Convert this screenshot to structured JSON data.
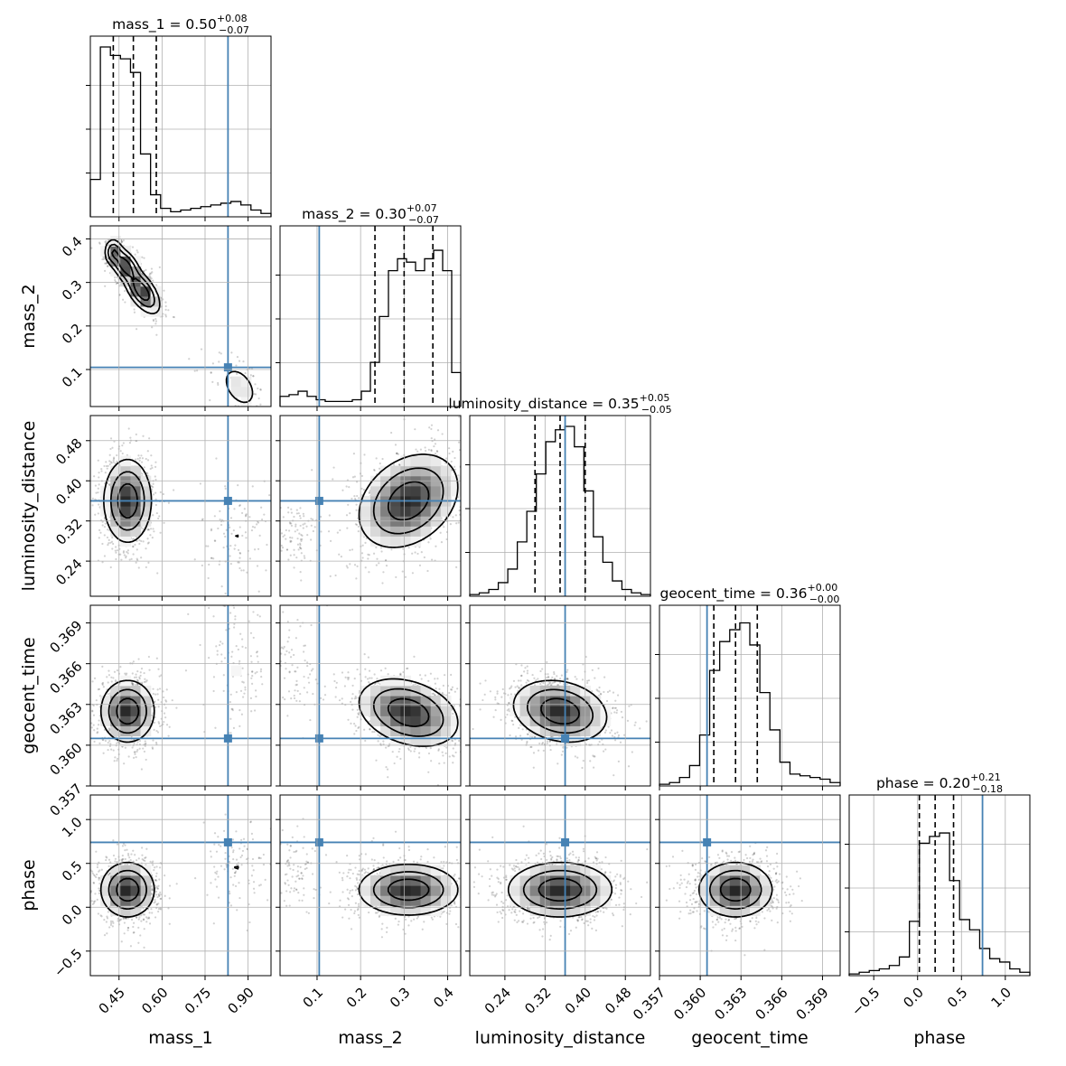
{
  "chart_data": {
    "type": "corner",
    "parameters": [
      {
        "name": "mass_1",
        "axis_label": "mass_1",
        "median": "0.50",
        "plus": "+0.08",
        "minus": "−0.07",
        "range": [
          0.35,
          0.98
        ],
        "ticks": [
          0.45,
          0.6,
          0.75,
          0.9
        ],
        "tick_labels": [
          "0.45",
          "0.60",
          "0.75",
          "0.90"
        ],
        "truth": 0.83,
        "quantiles": [
          0.43,
          0.5,
          0.58
        ]
      },
      {
        "name": "mass_2",
        "axis_label": "mass_2",
        "median": "0.30",
        "plus": "+0.07",
        "minus": "−0.07",
        "range": [
          0.015,
          0.43
        ],
        "ticks": [
          0.1,
          0.2,
          0.3,
          0.4
        ],
        "tick_labels": [
          "0.1",
          "0.2",
          "0.3",
          "0.4"
        ],
        "truth": 0.105,
        "quantiles": [
          0.233,
          0.3,
          0.366
        ]
      },
      {
        "name": "luminosity_distance",
        "axis_label": "luminosity_distance",
        "median": "0.35",
        "plus": "+0.05",
        "minus": "−0.05",
        "range": [
          0.17,
          0.53
        ],
        "ticks": [
          0.24,
          0.32,
          0.4,
          0.48
        ],
        "tick_labels": [
          "0.24",
          "0.32",
          "0.40",
          "0.48"
        ],
        "truth": 0.36,
        "quantiles": [
          0.3,
          0.35,
          0.4
        ]
      },
      {
        "name": "geocent_time",
        "axis_label": "geocent_time",
        "median": "0.36",
        "plus": "+0.00",
        "minus": "−0.00",
        "range": [
          0.357,
          0.3703
        ],
        "ticks": [
          0.357,
          0.36,
          0.363,
          0.366,
          0.369
        ],
        "tick_labels": [
          "0.357",
          "0.360",
          "0.363",
          "0.366",
          "0.369"
        ],
        "truth": 0.3605,
        "quantiles": [
          0.361,
          0.3626,
          0.3642
        ]
      },
      {
        "name": "phase",
        "axis_label": "phase",
        "median": "0.20",
        "plus": "+0.21",
        "minus": "−0.18",
        "range": [
          -0.78,
          1.28
        ],
        "ticks": [
          -0.5,
          0.0,
          0.5,
          1.0
        ],
        "tick_labels": [
          "−0.5",
          "0.0",
          "0.5",
          "1.0"
        ],
        "truth": 0.74,
        "quantiles": [
          0.02,
          0.2,
          0.41
        ]
      }
    ],
    "histograms": [
      [
        0.22,
        1.0,
        0.95,
        0.93,
        0.85,
        0.37,
        0.13,
        0.05,
        0.03,
        0.04,
        0.05,
        0.06,
        0.07,
        0.08,
        0.09,
        0.07,
        0.04,
        0.02
      ],
      [
        0.06,
        0.07,
        0.09,
        0.06,
        0.04,
        0.03,
        0.03,
        0.03,
        0.04,
        0.09,
        0.26,
        0.53,
        0.8,
        0.87,
        0.85,
        0.8,
        0.87,
        0.92,
        0.8,
        0.2
      ],
      [
        0.01,
        0.02,
        0.04,
        0.08,
        0.16,
        0.32,
        0.5,
        0.72,
        0.91,
        0.98,
        1.0,
        0.88,
        0.62,
        0.35,
        0.2,
        0.09,
        0.04,
        0.02,
        0.01
      ],
      [
        0.01,
        0.02,
        0.05,
        0.12,
        0.3,
        0.68,
        0.85,
        0.92,
        0.96,
        0.83,
        0.55,
        0.33,
        0.14,
        0.07,
        0.06,
        0.05,
        0.04,
        0.02
      ],
      [
        0.01,
        0.02,
        0.03,
        0.04,
        0.06,
        0.11,
        0.32,
        0.78,
        0.82,
        0.84,
        0.56,
        0.33,
        0.27,
        0.16,
        0.1,
        0.08,
        0.04,
        0.02
      ]
    ],
    "pairs": [
      {
        "row": 1,
        "col": 0,
        "comps": [
          {
            "mx": 0.43,
            "my": 0.37,
            "sx": 0.015,
            "sy": 0.015,
            "rho": 0.0,
            "w": 0.35
          },
          {
            "mx": 0.47,
            "my": 0.34,
            "sx": 0.025,
            "sy": 0.02,
            "rho": -0.5,
            "w": 0.55
          },
          {
            "mx": 0.53,
            "my": 0.28,
            "sx": 0.03,
            "sy": 0.025,
            "rho": -0.6,
            "w": 0.6
          },
          {
            "mx": 0.87,
            "my": 0.06,
            "sx": 0.045,
            "sy": 0.035,
            "rho": -0.4,
            "w": 0.12
          }
        ],
        "levels": [
          0.12,
          0.35,
          0.7
        ]
      },
      {
        "row": 2,
        "col": 0,
        "comps": [
          {
            "mx": 0.48,
            "my": 0.36,
            "sx": 0.04,
            "sy": 0.04,
            "rho": 0.0,
            "w": 1.0
          },
          {
            "mx": 0.86,
            "my": 0.29,
            "sx": 0.05,
            "sy": 0.045,
            "rho": 0.0,
            "w": 0.12
          }
        ],
        "levels": [
          0.12,
          0.35,
          0.7
        ]
      },
      {
        "row": 3,
        "col": 0,
        "comps": [
          {
            "mx": 0.48,
            "my": 0.3625,
            "sx": 0.045,
            "sy": 0.0011,
            "rho": 0.0,
            "w": 1.0
          },
          {
            "mx": 0.86,
            "my": 0.3655,
            "sx": 0.045,
            "sy": 0.002,
            "rho": 0.0,
            "w": 0.12
          }
        ],
        "levels": [
          0.12,
          0.35,
          0.7
        ]
      },
      {
        "row": 4,
        "col": 0,
        "comps": [
          {
            "mx": 0.48,
            "my": 0.2,
            "sx": 0.045,
            "sy": 0.15,
            "rho": 0.0,
            "w": 1.0
          },
          {
            "mx": 0.86,
            "my": 0.45,
            "sx": 0.05,
            "sy": 0.2,
            "rho": 0.0,
            "w": 0.12
          }
        ],
        "levels": [
          0.12,
          0.35,
          0.7
        ]
      },
      {
        "row": 2,
        "col": 1,
        "comps": [
          {
            "mx": 0.31,
            "my": 0.36,
            "sx": 0.055,
            "sy": 0.045,
            "rho": 0.3,
            "w": 1.0
          },
          {
            "mx": 0.05,
            "my": 0.29,
            "sx": 0.02,
            "sy": 0.03,
            "rho": 0.0,
            "w": 0.1
          }
        ],
        "levels": [
          0.12,
          0.35,
          0.7
        ]
      },
      {
        "row": 3,
        "col": 1,
        "comps": [
          {
            "mx": 0.31,
            "my": 0.3624,
            "sx": 0.055,
            "sy": 0.0012,
            "rho": -0.3,
            "w": 1.0
          },
          {
            "mx": 0.05,
            "my": 0.3655,
            "sx": 0.025,
            "sy": 0.0018,
            "rho": 0.0,
            "w": 0.1
          }
        ],
        "levels": [
          0.12,
          0.35,
          0.7
        ]
      },
      {
        "row": 4,
        "col": 1,
        "comps": [
          {
            "mx": 0.31,
            "my": 0.2,
            "sx": 0.055,
            "sy": 0.14,
            "rho": 0.0,
            "w": 1.0
          },
          {
            "mx": 0.05,
            "my": 0.45,
            "sx": 0.02,
            "sy": 0.2,
            "rho": 0.0,
            "w": 0.1
          }
        ],
        "levels": [
          0.12,
          0.35,
          0.7
        ]
      },
      {
        "row": 3,
        "col": 2,
        "comps": [
          {
            "mx": 0.35,
            "my": 0.3625,
            "sx": 0.045,
            "sy": 0.0011,
            "rho": -0.2,
            "w": 1.0
          }
        ],
        "levels": [
          0.12,
          0.35,
          0.7
        ]
      },
      {
        "row": 4,
        "col": 2,
        "comps": [
          {
            "mx": 0.35,
            "my": 0.2,
            "sx": 0.05,
            "sy": 0.15,
            "rho": 0.0,
            "w": 1.0
          }
        ],
        "levels": [
          0.12,
          0.35,
          0.7
        ]
      },
      {
        "row": 4,
        "col": 3,
        "comps": [
          {
            "mx": 0.3626,
            "my": 0.2,
            "sx": 0.0013,
            "sy": 0.15,
            "rho": 0.0,
            "w": 1.0
          }
        ],
        "levels": [
          0.12,
          0.35,
          0.7
        ]
      }
    ],
    "truth_color": "#4682b4",
    "grid": true
  }
}
